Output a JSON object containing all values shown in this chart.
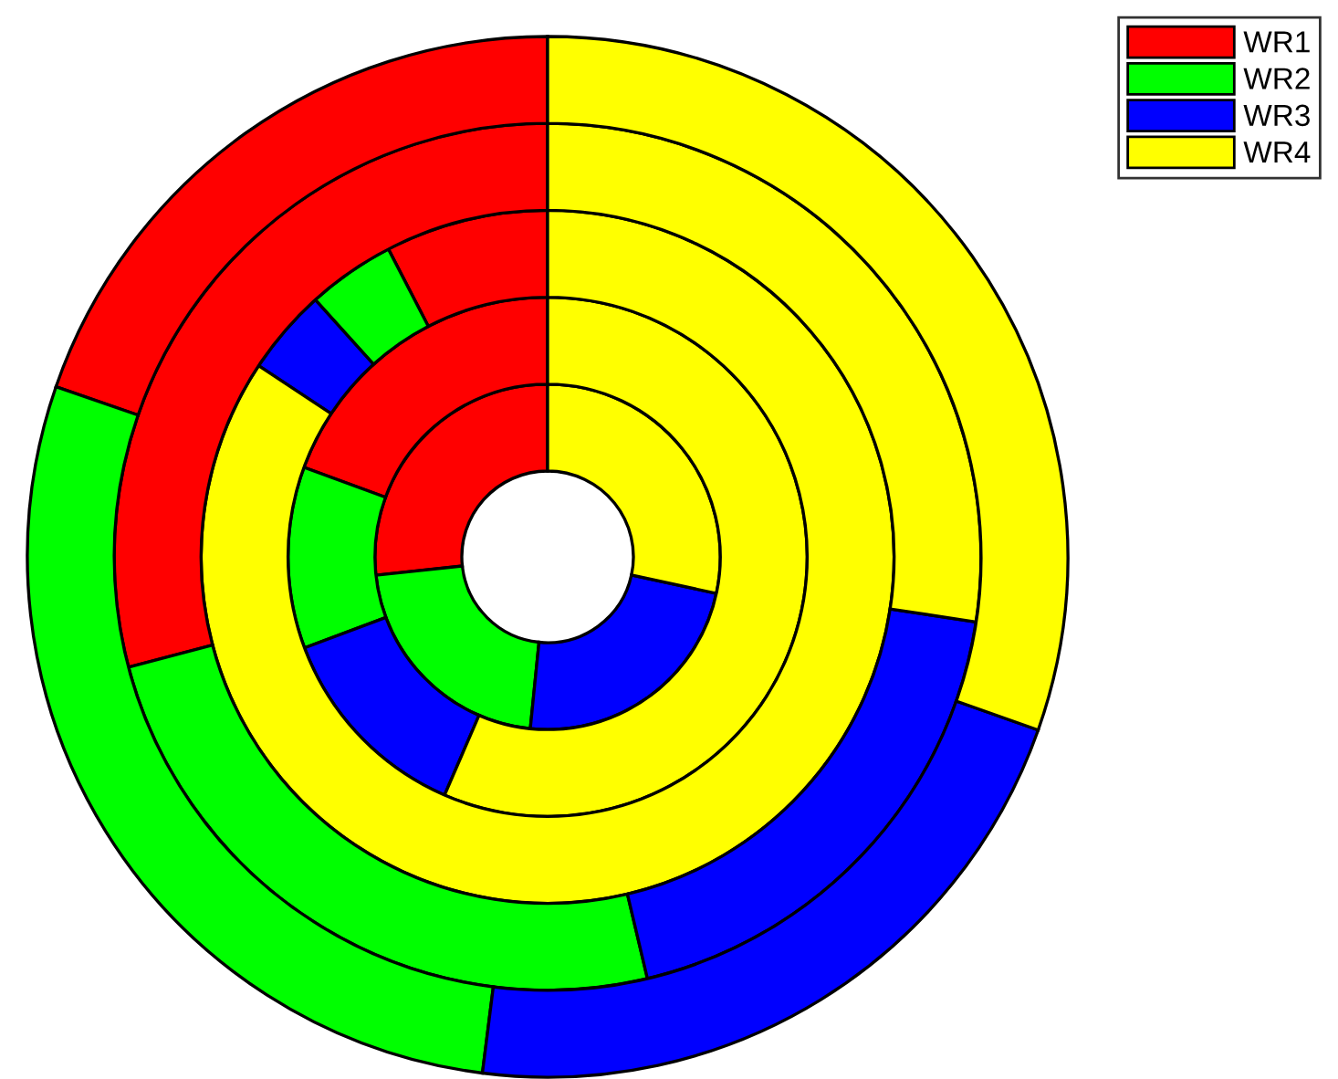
{
  "chart_data": {
    "type": "donut",
    "categories": [
      "WR1",
      "WR2",
      "WR3",
      "WR4"
    ],
    "colors": [
      "#ff0000",
      "#00ff00",
      "#0000ff",
      "#ffff00"
    ],
    "legend": "top right",
    "series": [
      {
        "values": [
          26.7,
          21.7,
          23.2,
          28.4
        ]
      },
      {
        "values": [
          19.4,
          11.3,
          12.8,
          56.5
        ]
      },
      {
        "values": [
          7.6,
          4.1,
          4.0,
          84.3
        ]
      },
      {
        "values": [
          29.1,
          24.6,
          18.9,
          27.4
        ]
      },
      {
        "values": [
          19.7,
          28.3,
          21.6,
          30.4
        ]
      }
    ]
  }
}
